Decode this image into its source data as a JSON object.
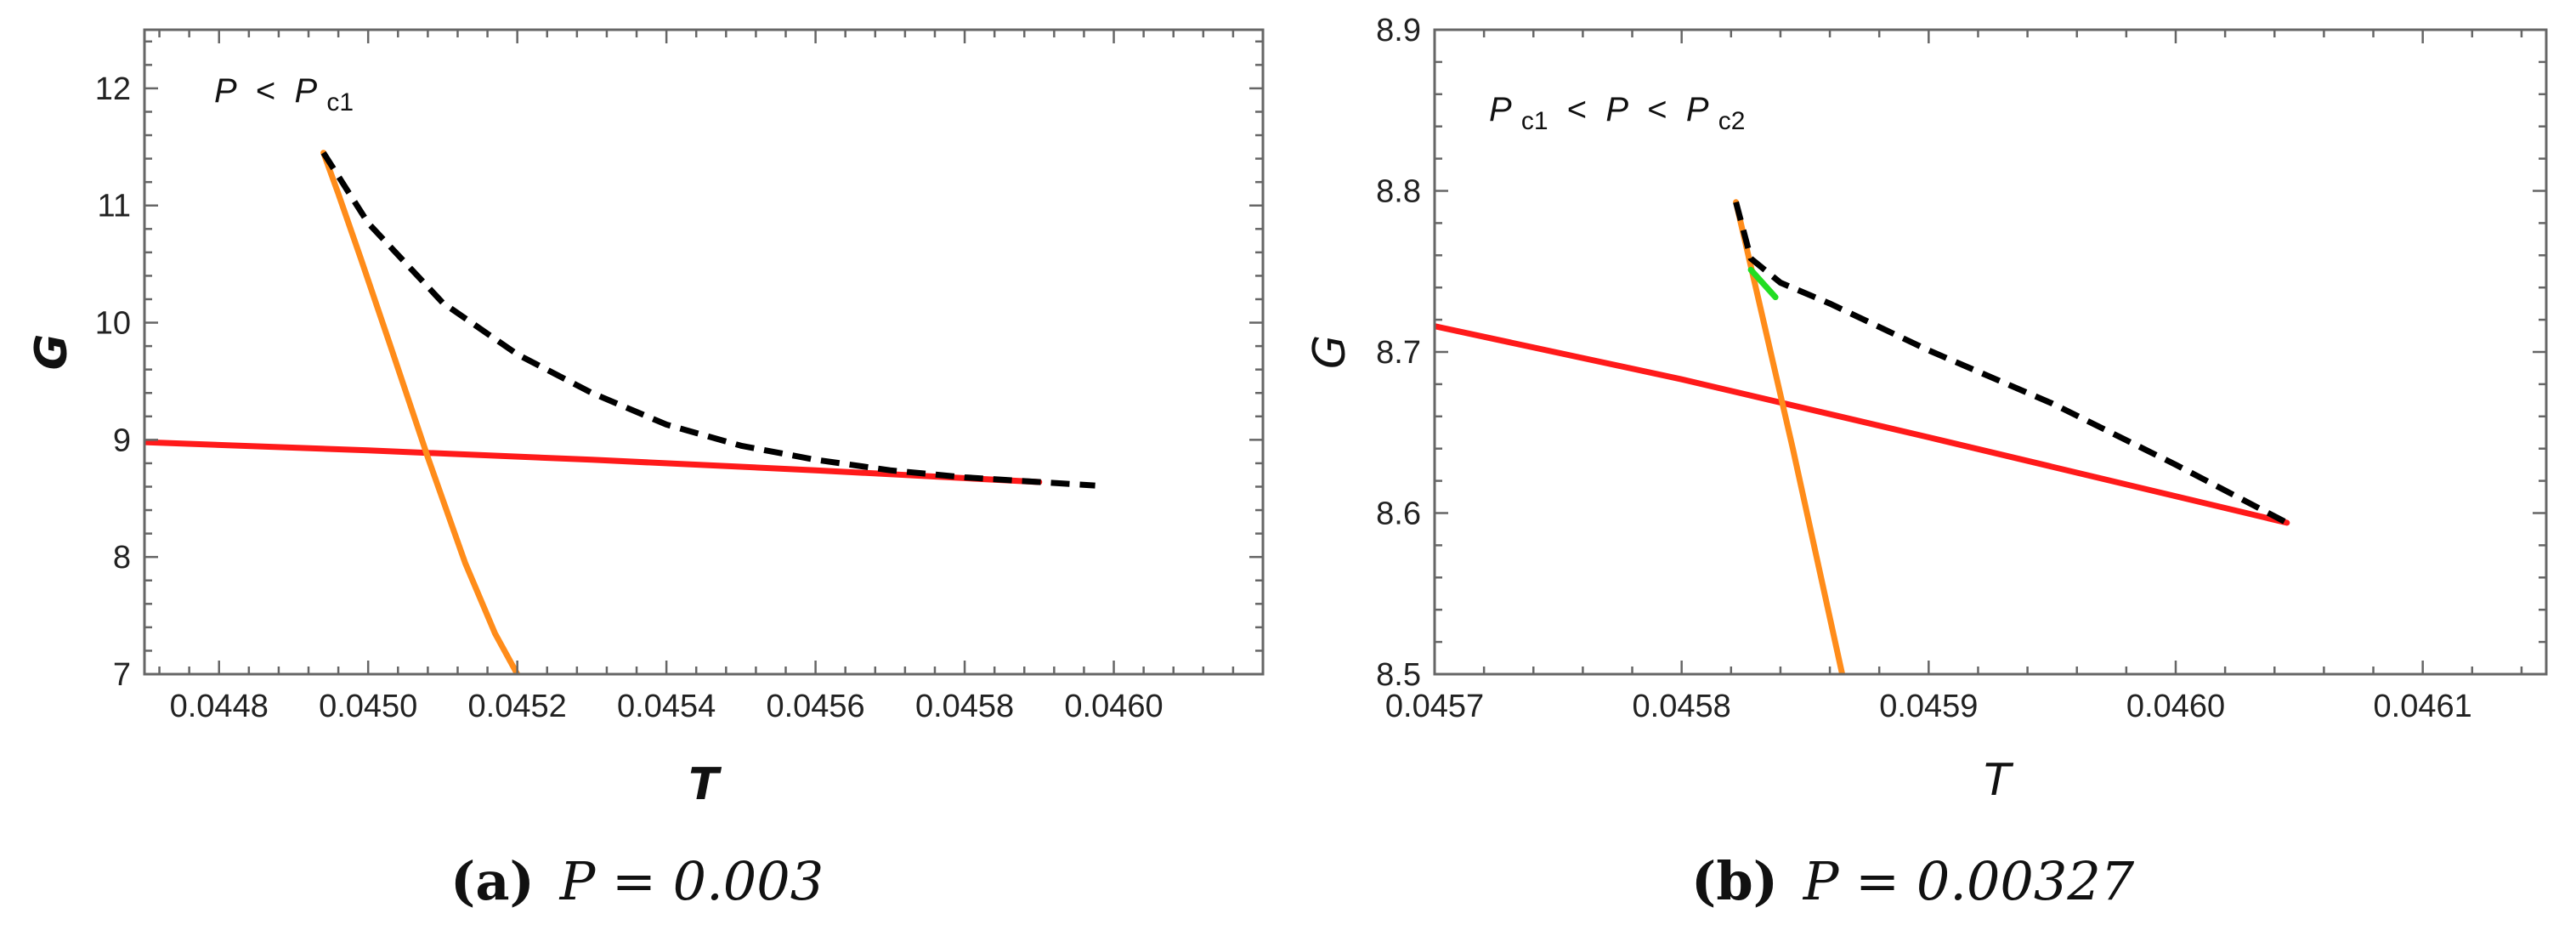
{
  "chart_data": [
    {
      "type": "line",
      "panel": "a",
      "xlabel": "T",
      "ylabel": "G",
      "xlim": [
        0.0447,
        0.0462
      ],
      "ylim": [
        7,
        12.5
      ],
      "x_ticks": [
        0.0448,
        0.045,
        0.0452,
        0.0454,
        0.0456,
        0.0458,
        0.046
      ],
      "x_tick_labels": [
        "0.0448",
        "0.0450",
        "0.0452",
        "0.0454",
        "0.0456",
        "0.0458",
        "0.0460"
      ],
      "y_ticks": [
        7,
        8,
        9,
        10,
        11,
        12
      ],
      "y_tick_labels": [
        "7",
        "8",
        "9",
        "10",
        "11",
        "12"
      ],
      "annotation": {
        "parts": [
          "P",
          " < ",
          "P",
          "c1"
        ]
      },
      "caption": {
        "letter": "(a)",
        "text": "P = 0.003"
      },
      "series": [
        {
          "name": "red-branch",
          "color": "#ff1a1a",
          "style": "solid",
          "x": [
            0.0447,
            0.045,
            0.0453,
            0.0456,
            0.0459
          ],
          "y": [
            8.98,
            8.91,
            8.83,
            8.74,
            8.64
          ]
        },
        {
          "name": "orange-branch",
          "color": "#ff8c1a",
          "style": "solid",
          "x": [
            0.04494,
            0.04496,
            0.04499,
            0.04503,
            0.04508,
            0.04513,
            0.04517,
            0.0452
          ],
          "y": [
            11.45,
            11.1,
            10.55,
            9.8,
            8.85,
            7.95,
            7.35,
            7.0
          ]
        },
        {
          "name": "black-branch",
          "color": "#000000",
          "style": "dashed",
          "x": [
            0.04494,
            0.045,
            0.0451,
            0.0452,
            0.0453,
            0.0454,
            0.0455,
            0.0456,
            0.0457,
            0.0458,
            0.0459,
            0.045975
          ],
          "y": [
            11.45,
            10.85,
            10.17,
            9.73,
            9.4,
            9.13,
            8.95,
            8.83,
            8.74,
            8.68,
            8.64,
            8.61
          ]
        }
      ]
    },
    {
      "type": "line",
      "panel": "b",
      "xlabel": "T",
      "ylabel": "G",
      "xlim": [
        0.0457,
        0.04615
      ],
      "ylim": [
        8.5,
        8.9
      ],
      "x_ticks": [
        0.0457,
        0.0458,
        0.0459,
        0.046,
        0.0461
      ],
      "x_tick_labels": [
        "0.0457",
        "0.0458",
        "0.0459",
        "0.0460",
        "0.0461"
      ],
      "y_ticks": [
        8.5,
        8.6,
        8.7,
        8.8,
        8.9
      ],
      "y_tick_labels": [
        "8.5",
        "8.6",
        "8.7",
        "8.8",
        "8.9"
      ],
      "annotation": {
        "parts": [
          "P",
          "c1",
          " < ",
          "P",
          " < ",
          "P",
          "c2"
        ]
      },
      "caption": {
        "letter": "(b)",
        "text": "P = 0.00327"
      },
      "series": [
        {
          "name": "red-branch",
          "color": "#ff1a1a",
          "style": "solid",
          "x": [
            0.0457,
            0.0458,
            0.0459,
            0.046045
          ],
          "y": [
            8.716,
            8.683,
            8.647,
            8.594
          ]
        },
        {
          "name": "orange-branch",
          "color": "#ff8c1a",
          "style": "solid",
          "x": [
            0.045822,
            0.04583,
            0.045845,
            0.045865
          ],
          "y": [
            8.793,
            8.74,
            8.64,
            8.5
          ]
        },
        {
          "name": "black-branch",
          "color": "#000000",
          "style": "dashed",
          "x": [
            0.045822,
            0.045828,
            0.04584,
            0.04586,
            0.0459,
            0.04595,
            0.046,
            0.046045
          ],
          "y": [
            8.793,
            8.758,
            8.743,
            8.73,
            8.701,
            8.668,
            8.63,
            8.594
          ]
        },
        {
          "name": "green-branch",
          "color": "#22dd22",
          "style": "solid",
          "x": [
            0.045828,
            0.045838
          ],
          "y": [
            8.751,
            8.734
          ]
        }
      ]
    }
  ]
}
